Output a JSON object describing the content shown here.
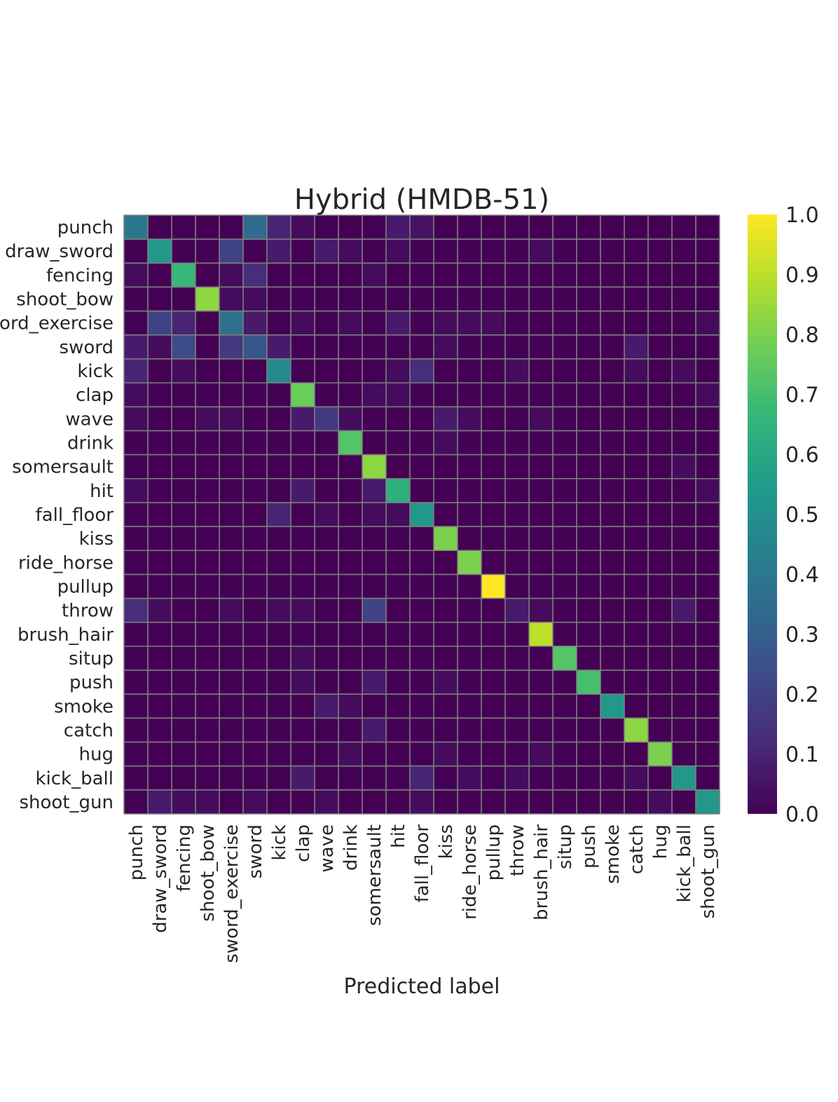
{
  "chart_data": {
    "type": "heatmap",
    "title": "Hybrid (HMDB-51)",
    "xlabel": "Predicted label",
    "ylabel": "",
    "labels": [
      "punch",
      "draw_sword",
      "fencing",
      "shoot_bow",
      "sword_exercise",
      "sword",
      "kick",
      "clap",
      "wave",
      "drink",
      "somersault",
      "hit",
      "fall_floor",
      "kiss",
      "ride_horse",
      "pullup",
      "throw",
      "brush_hair",
      "situp",
      "push",
      "smoke",
      "catch",
      "hug",
      "kick_ball",
      "shoot_gun"
    ],
    "row_tick_labels": [
      "punch",
      "draw_sword",
      "fencing",
      "shoot_bow",
      "ord_exercise",
      "sword",
      "kick",
      "clap",
      "wave",
      "drink",
      "somersault",
      "hit",
      "fall_floor",
      "kiss",
      "ride_horse",
      "pullup",
      "throw",
      "brush_hair",
      "situp",
      "push",
      "smoke",
      "catch",
      "hug",
      "kick_ball",
      "shoot_gun"
    ],
    "colorbar": {
      "min": 0.0,
      "max": 1.0,
      "ticks": [
        "0.0",
        "0.1",
        "0.2",
        "0.3",
        "0.4",
        "0.5",
        "0.6",
        "0.7",
        "0.8",
        "0.9",
        "1.0"
      ],
      "colormap": "viridis",
      "stops": [
        "#440154",
        "#482878",
        "#3e4989",
        "#31688e",
        "#26828e",
        "#1f9e89",
        "#35b779",
        "#6ece58",
        "#b5de2b",
        "#fde725"
      ]
    },
    "grid": true,
    "matrix": [
      [
        0.4,
        0,
        0,
        0,
        0,
        0.35,
        0.1,
        0.03,
        0,
        0,
        0,
        0.07,
        0.05,
        0,
        0,
        0,
        0,
        0,
        0,
        0,
        0,
        0,
        0,
        0,
        0
      ],
      [
        0,
        0.53,
        0,
        0,
        0.2,
        0,
        0.07,
        0,
        0.07,
        0.03,
        0,
        0.03,
        0,
        0,
        0,
        0,
        0,
        0.03,
        0,
        0,
        0,
        0,
        0,
        0,
        0
      ],
      [
        0.03,
        0,
        0.67,
        0,
        0.03,
        0.13,
        0,
        0,
        0,
        0,
        0.03,
        0,
        0,
        0,
        0,
        0,
        0,
        0,
        0,
        0,
        0,
        0,
        0,
        0,
        0
      ],
      [
        0,
        0,
        0,
        0.83,
        0.03,
        0.03,
        0,
        0,
        0,
        0,
        0,
        0,
        0,
        0,
        0,
        0,
        0,
        0,
        0,
        0,
        0,
        0,
        0,
        0,
        0
      ],
      [
        0,
        0.2,
        0.1,
        0,
        0.37,
        0.07,
        0,
        0.03,
        0,
        0.03,
        0,
        0.07,
        0,
        0.03,
        0.03,
        0.03,
        0,
        0,
        0,
        0,
        0,
        0,
        0,
        0,
        0.03
      ],
      [
        0.07,
        0.03,
        0.23,
        0,
        0.17,
        0.27,
        0.07,
        0,
        0,
        0,
        0,
        0,
        0,
        0.03,
        0,
        0,
        0,
        0,
        0,
        0,
        0,
        0.07,
        0,
        0,
        0
      ],
      [
        0.1,
        0,
        0.03,
        0,
        0,
        0,
        0.48,
        0,
        0,
        0,
        0,
        0.03,
        0.13,
        0,
        0,
        0,
        0.03,
        0,
        0,
        0,
        0,
        0.03,
        0,
        0.03,
        0
      ],
      [
        0.03,
        0,
        0,
        0,
        0,
        0,
        0,
        0.77,
        0,
        0,
        0.03,
        0.03,
        0,
        0,
        0,
        0,
        0,
        0,
        0,
        0,
        0,
        0,
        0,
        0,
        0.03
      ],
      [
        0.03,
        0,
        0,
        0.03,
        0.03,
        0,
        0,
        0.07,
        0.17,
        0.03,
        0,
        0,
        0,
        0.07,
        0.03,
        0,
        0,
        0.03,
        0,
        0,
        0,
        0,
        0,
        0,
        0
      ],
      [
        0,
        0,
        0,
        0,
        0,
        0,
        0,
        0,
        0,
        0.73,
        0,
        0,
        0,
        0.03,
        0,
        0,
        0,
        0,
        0,
        0,
        0,
        0,
        0,
        0,
        0
      ],
      [
        0,
        0,
        0,
        0,
        0,
        0,
        0,
        0,
        0,
        0,
        0.83,
        0,
        0,
        0,
        0,
        0,
        0,
        0,
        0,
        0,
        0,
        0,
        0,
        0.03,
        0
      ],
      [
        0.03,
        0,
        0,
        0,
        0,
        0,
        0,
        0.07,
        0,
        0,
        0.07,
        0.63,
        0,
        0,
        0,
        0,
        0,
        0,
        0,
        0,
        0,
        0,
        0,
        0,
        0.03
      ],
      [
        0,
        0,
        0,
        0,
        0,
        0,
        0.1,
        0,
        0.03,
        0,
        0.03,
        0.03,
        0.53,
        0,
        0,
        0,
        0,
        0,
        0,
        0,
        0,
        0,
        0,
        0,
        0
      ],
      [
        0,
        0,
        0,
        0,
        0,
        0,
        0,
        0,
        0,
        0,
        0,
        0,
        0,
        0.8,
        0,
        0,
        0,
        0,
        0,
        0,
        0,
        0,
        0,
        0,
        0
      ],
      [
        0,
        0,
        0,
        0,
        0,
        0,
        0,
        0,
        0,
        0,
        0,
        0,
        0,
        0,
        0.8,
        0,
        0,
        0,
        0,
        0,
        0,
        0,
        0,
        0,
        0
      ],
      [
        0,
        0,
        0,
        0,
        0,
        0,
        0,
        0,
        0,
        0,
        0,
        0,
        0,
        0,
        0,
        1.0,
        0,
        0,
        0,
        0,
        0,
        0,
        0,
        0,
        0
      ],
      [
        0.13,
        0.03,
        0,
        0,
        0.03,
        0,
        0.03,
        0.03,
        0,
        0,
        0.2,
        0,
        0,
        0,
        0,
        0,
        0.07,
        0.03,
        0,
        0,
        0,
        0,
        0,
        0.07,
        0
      ],
      [
        0,
        0,
        0,
        0,
        0,
        0,
        0,
        0,
        0,
        0,
        0,
        0,
        0,
        0,
        0,
        0,
        0,
        0.9,
        0,
        0,
        0,
        0,
        0,
        0,
        0
      ],
      [
        0,
        0,
        0,
        0,
        0,
        0,
        0,
        0.03,
        0,
        0,
        0,
        0,
        0,
        0,
        0,
        0,
        0,
        0,
        0.73,
        0,
        0,
        0,
        0,
        0,
        0
      ],
      [
        0,
        0,
        0,
        0,
        0,
        0,
        0,
        0.03,
        0,
        0,
        0.07,
        0,
        0,
        0.03,
        0,
        0,
        0,
        0,
        0,
        0.7,
        0,
        0,
        0,
        0,
        0
      ],
      [
        0,
        0,
        0,
        0,
        0,
        0,
        0,
        0,
        0.07,
        0.03,
        0,
        0,
        0,
        0,
        0,
        0,
        0,
        0,
        0,
        0,
        0.53,
        0,
        0,
        0,
        0
      ],
      [
        0,
        0,
        0,
        0,
        0,
        0,
        0,
        0,
        0,
        0,
        0.07,
        0,
        0,
        0,
        0,
        0,
        0,
        0,
        0,
        0,
        0,
        0.83,
        0,
        0,
        0
      ],
      [
        0,
        0,
        0,
        0,
        0,
        0,
        0,
        0,
        0,
        0.03,
        0,
        0,
        0,
        0.03,
        0,
        0,
        0,
        0.03,
        0,
        0,
        0,
        0,
        0.8,
        0,
        0
      ],
      [
        0,
        0,
        0,
        0,
        0,
        0,
        0,
        0.07,
        0,
        0,
        0,
        0,
        0.1,
        0,
        0.03,
        0,
        0.03,
        0,
        0,
        0,
        0,
        0.03,
        0,
        0.53,
        0
      ],
      [
        0,
        0.07,
        0.03,
        0.03,
        0,
        0.03,
        0,
        0,
        0.03,
        0,
        0,
        0,
        0.03,
        0,
        0,
        0,
        0,
        0,
        0,
        0,
        0,
        0,
        0.03,
        0,
        0.53
      ]
    ]
  }
}
